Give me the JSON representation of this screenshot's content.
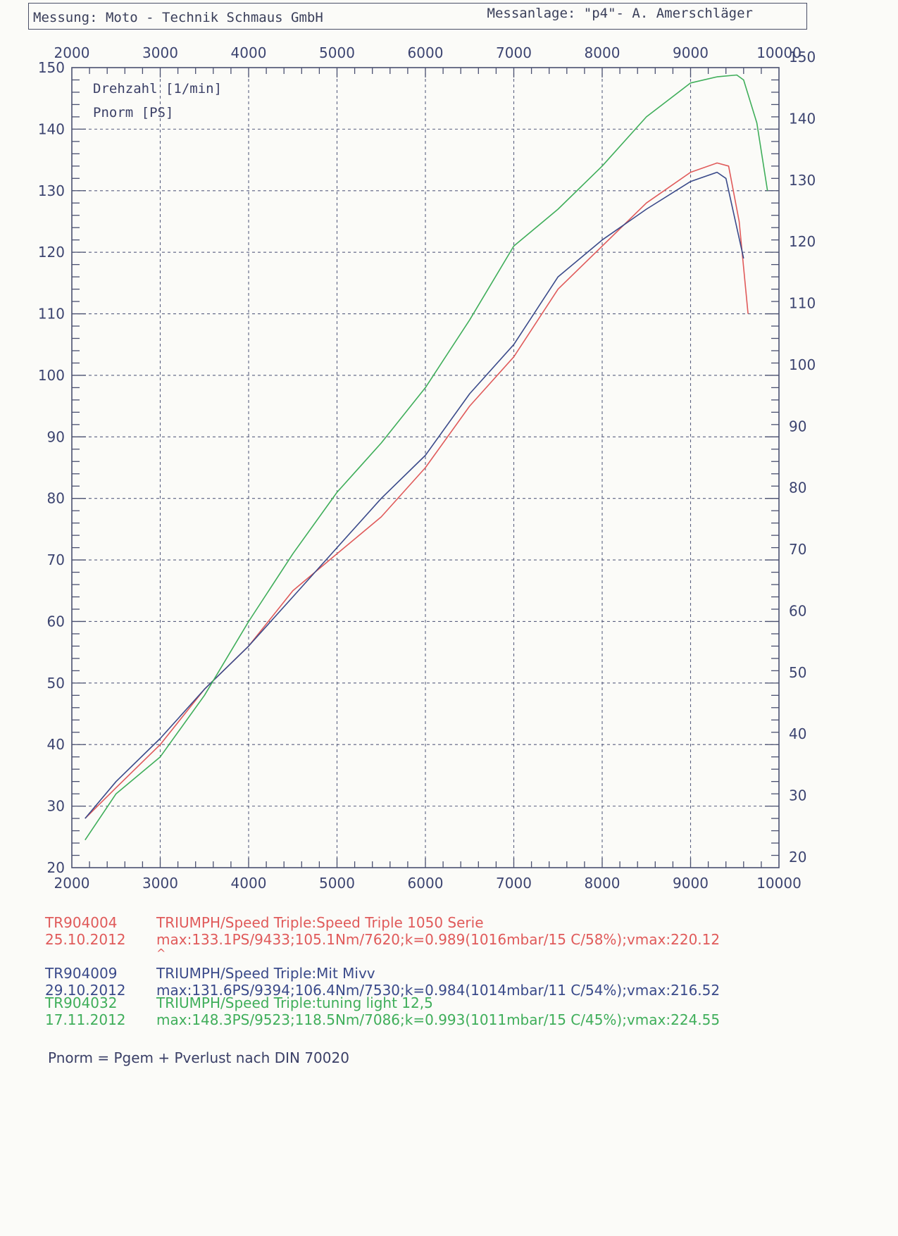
{
  "header": {
    "left": "Messung: Moto - Technik Schmaus GmbH",
    "right": "Messanlage: \"p4\"- A. Amerschläger"
  },
  "chart_data": {
    "type": "line",
    "legend": [
      "Drehzahl [1/min]",
      "Pnorm [PS]"
    ],
    "x_ticks": [
      "2000",
      "3000",
      "4000",
      "5000",
      "6000",
      "7000",
      "8000",
      "9000",
      "10000"
    ],
    "y_ticks": [
      "20",
      "30",
      "40",
      "50",
      "60",
      "70",
      "80",
      "90",
      "100",
      "110",
      "120",
      "130",
      "140",
      "150"
    ],
    "xlim": [
      2000,
      10000
    ],
    "ylim": [
      20,
      150
    ],
    "grid": true,
    "colors": {
      "red": "#e05a5a",
      "blue": "#3a4a8a",
      "green": "#3fae5a",
      "grid": "#5a6080"
    },
    "series": [
      {
        "color": "red",
        "points": [
          [
            2150,
            28
          ],
          [
            2500,
            33
          ],
          [
            3000,
            40
          ],
          [
            3500,
            49
          ],
          [
            4000,
            56
          ],
          [
            4500,
            65
          ],
          [
            5000,
            71
          ],
          [
            5500,
            77
          ],
          [
            6000,
            85
          ],
          [
            6500,
            95
          ],
          [
            7000,
            103
          ],
          [
            7500,
            114
          ],
          [
            8000,
            121
          ],
          [
            8500,
            128
          ],
          [
            9000,
            133
          ],
          [
            9300,
            134.5
          ],
          [
            9430,
            134
          ],
          [
            9550,
            125
          ],
          [
            9650,
            110
          ]
        ]
      },
      {
        "color": "blue",
        "points": [
          [
            2150,
            28
          ],
          [
            2500,
            34
          ],
          [
            3000,
            41
          ],
          [
            3500,
            49
          ],
          [
            4000,
            56
          ],
          [
            4500,
            64
          ],
          [
            5000,
            72
          ],
          [
            5500,
            80
          ],
          [
            6000,
            87
          ],
          [
            6500,
            97
          ],
          [
            7000,
            105
          ],
          [
            7500,
            116
          ],
          [
            8000,
            122
          ],
          [
            8500,
            127
          ],
          [
            9000,
            131.5
          ],
          [
            9300,
            133
          ],
          [
            9400,
            132
          ],
          [
            9600,
            119
          ]
        ]
      },
      {
        "color": "green",
        "points": [
          [
            2150,
            24.5
          ],
          [
            2500,
            32
          ],
          [
            3000,
            38
          ],
          [
            3500,
            48
          ],
          [
            4000,
            60
          ],
          [
            4500,
            71
          ],
          [
            5000,
            81
          ],
          [
            5500,
            89
          ],
          [
            6000,
            98
          ],
          [
            6500,
            109
          ],
          [
            7000,
            121
          ],
          [
            7500,
            127
          ],
          [
            8000,
            134
          ],
          [
            8500,
            142
          ],
          [
            9000,
            147.5
          ],
          [
            9300,
            148.5
          ],
          [
            9523,
            148.8
          ],
          [
            9600,
            148
          ],
          [
            9750,
            141
          ],
          [
            9870,
            130
          ]
        ]
      }
    ]
  },
  "runs": [
    {
      "id": "TR904004",
      "date": "25.10.2012",
      "model": "TRIUMPH/Speed Triple:Speed Triple 1050 Serie",
      "stats": "max:133.1PS/9433;105.1Nm/7620;k=0.989(1016mbar/15 C/58%);vmax:220.12"
    },
    {
      "id": "TR904009",
      "date": "29.10.2012",
      "model": "TRIUMPH/Speed Triple:Mit Mivv",
      "stats": "max:131.6PS/9394;106.4Nm/7530;k=0.984(1014mbar/11 C/54%);vmax:216.52"
    },
    {
      "id": "TR904032",
      "date": "17.11.2012",
      "model": "TRIUMPH/Speed Triple:tuning light  12,5",
      "stats": "max:148.3PS/9523;118.5Nm/7086;k=0.993(1011mbar/15 C/45%);vmax:224.55"
    }
  ],
  "caret": "^",
  "formula": "Pnorm = Pgem + Pverlust nach DIN 70020"
}
